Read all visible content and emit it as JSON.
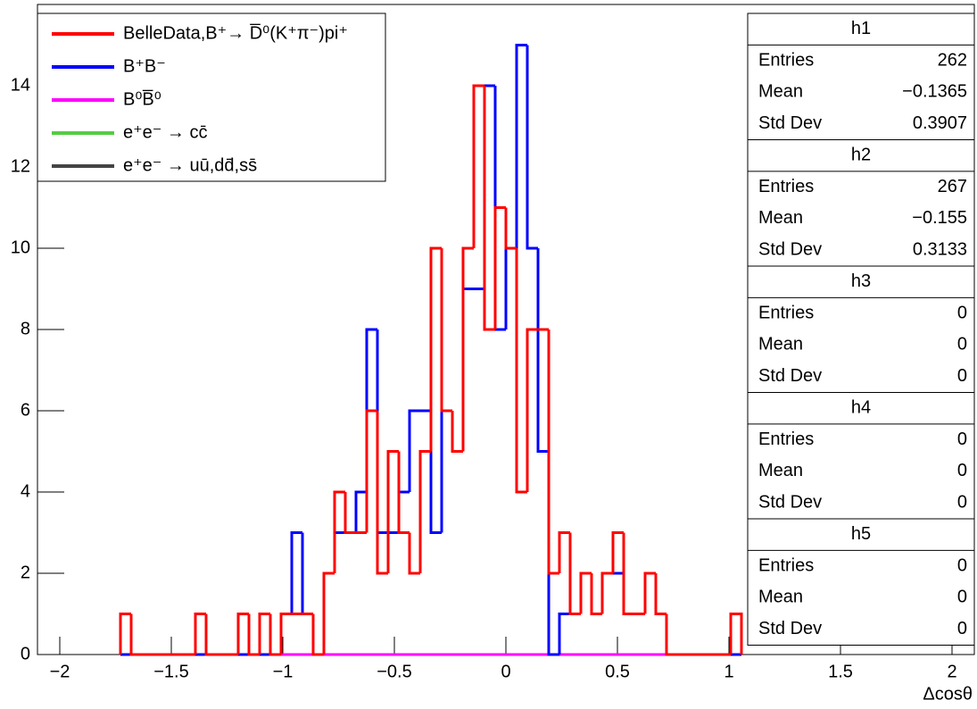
{
  "chart_data": {
    "type": "histogram",
    "xlabel": "Δcosθ",
    "xlim": [
      -2.1,
      2.1
    ],
    "ylim": [
      0,
      16
    ],
    "xticks": [
      {
        "value": -2,
        "label": "−2"
      },
      {
        "value": -1.5,
        "label": "−1.5"
      },
      {
        "value": -1,
        "label": "−1"
      },
      {
        "value": -0.5,
        "label": "−0.5"
      },
      0,
      0.5,
      1,
      1.5,
      2
    ],
    "yticks": [
      0,
      2,
      4,
      6,
      8,
      10,
      12,
      14
    ],
    "bins": [
      -1.728,
      -1.68,
      -1.632,
      -1.584,
      -1.536,
      -1.488,
      -1.44,
      -1.392,
      -1.344,
      -1.296,
      -1.248,
      -1.2,
      -1.152,
      -1.104,
      -1.056,
      -1.008,
      -0.96,
      -0.912,
      -0.864,
      -0.816,
      -0.768,
      -0.72,
      -0.672,
      -0.624,
      -0.576,
      -0.528,
      -0.48,
      -0.432,
      -0.384,
      -0.336,
      -0.288,
      -0.24,
      -0.192,
      -0.144,
      -0.096,
      -0.048,
      0,
      0.048,
      0.096,
      0.144,
      0.192,
      0.24,
      0.288,
      0.336,
      0.384,
      0.432,
      0.48,
      0.528,
      0.576,
      0.624,
      0.672,
      0.72,
      0.768,
      0.816,
      0.864,
      0.912,
      0.96,
      1.008,
      1.056
    ],
    "series": [
      {
        "name": "BelleData,B⁺→ D̅⁰(K⁺π⁻)pi⁺",
        "color": "#ff0000",
        "values": [
          1,
          0,
          0,
          0,
          0,
          0,
          0,
          1,
          0,
          0,
          0,
          1,
          0,
          1,
          0,
          1,
          1,
          1,
          0,
          2,
          4,
          3,
          3,
          6,
          2,
          5,
          3,
          2,
          5,
          10,
          6,
          5,
          10,
          14,
          8,
          11,
          10,
          4,
          8,
          8,
          2,
          3,
          1,
          2,
          1,
          2,
          3,
          1,
          1,
          2,
          1,
          0,
          0,
          0,
          0,
          0,
          0,
          1
        ]
      },
      {
        "name": "B⁺B⁻",
        "color": "#0000ff",
        "values": [
          0,
          0,
          0,
          0,
          0,
          0,
          0,
          0,
          0,
          0,
          0,
          0,
          0,
          0,
          0,
          1,
          3,
          1,
          0,
          2,
          3,
          3,
          4,
          8,
          3,
          3,
          4,
          6,
          6,
          3,
          6,
          5,
          9,
          9,
          14,
          8,
          10,
          15,
          10,
          5,
          0,
          1,
          1,
          2,
          1,
          2,
          2,
          1,
          1,
          2,
          1,
          0,
          0,
          0,
          0,
          0,
          0,
          0
        ]
      },
      {
        "name": "B⁰B̅⁰",
        "color": "#ff00ff",
        "values": [
          0,
          0,
          0,
          0,
          0,
          0,
          0,
          0,
          0,
          0,
          0,
          0,
          0,
          0,
          0,
          0,
          0,
          0,
          0,
          0,
          0,
          0,
          0,
          0,
          0,
          0,
          0,
          0,
          0,
          0,
          0,
          0,
          0,
          0,
          0,
          0,
          0,
          0,
          0,
          0,
          0,
          0,
          0,
          0,
          0,
          0,
          0,
          0,
          0,
          0,
          0,
          0,
          0,
          0,
          0,
          0,
          0,
          0
        ]
      },
      {
        "name": "e⁺e⁻ → cc̄",
        "color": "#55cc44",
        "values": [
          0,
          0,
          0,
          0,
          0,
          0,
          0,
          0,
          0,
          0,
          0,
          0,
          0,
          0,
          0,
          0,
          0,
          0,
          0,
          0,
          0,
          0,
          0,
          0,
          0,
          0,
          0,
          0,
          0,
          0,
          0,
          0,
          0,
          0,
          0,
          0,
          0,
          0,
          0,
          0,
          0,
          0,
          0,
          0,
          0,
          0,
          0,
          0,
          0,
          0,
          0,
          0,
          0,
          0,
          0,
          0,
          0,
          0
        ]
      },
      {
        "name": "e⁺e⁻ → uū,dd̄,ss̄",
        "color": "#444444",
        "values": [
          0,
          0,
          0,
          0,
          0,
          0,
          0,
          0,
          0,
          0,
          0,
          0,
          0,
          0,
          0,
          0,
          0,
          0,
          0,
          0,
          0,
          0,
          0,
          0,
          0,
          0,
          0,
          0,
          0,
          0,
          0,
          0,
          0,
          0,
          0,
          0,
          0,
          0,
          0,
          0,
          0,
          0,
          0,
          0,
          0,
          0,
          0,
          0,
          0,
          0,
          0,
          0,
          0,
          0,
          0,
          0,
          0,
          0
        ]
      }
    ],
    "stats": [
      {
        "name": "h1",
        "rows": [
          [
            "Entries",
            "262"
          ],
          [
            "Mean",
            "−0.1365"
          ],
          [
            "Std Dev",
            "0.3907"
          ]
        ]
      },
      {
        "name": "h2",
        "rows": [
          [
            "Entries",
            "267"
          ],
          [
            "Mean",
            "−0.155"
          ],
          [
            "Std Dev",
            "0.3133"
          ]
        ]
      },
      {
        "name": "h3",
        "rows": [
          [
            "Entries",
            "0"
          ],
          [
            "Mean",
            "0"
          ],
          [
            "Std Dev",
            "0"
          ]
        ]
      },
      {
        "name": "h4",
        "rows": [
          [
            "Entries",
            "0"
          ],
          [
            "Mean",
            "0"
          ],
          [
            "Std Dev",
            "0"
          ]
        ]
      },
      {
        "name": "h5",
        "rows": [
          [
            "Entries",
            "0"
          ],
          [
            "Mean",
            "0"
          ],
          [
            "Std Dev",
            "0"
          ]
        ]
      }
    ]
  }
}
